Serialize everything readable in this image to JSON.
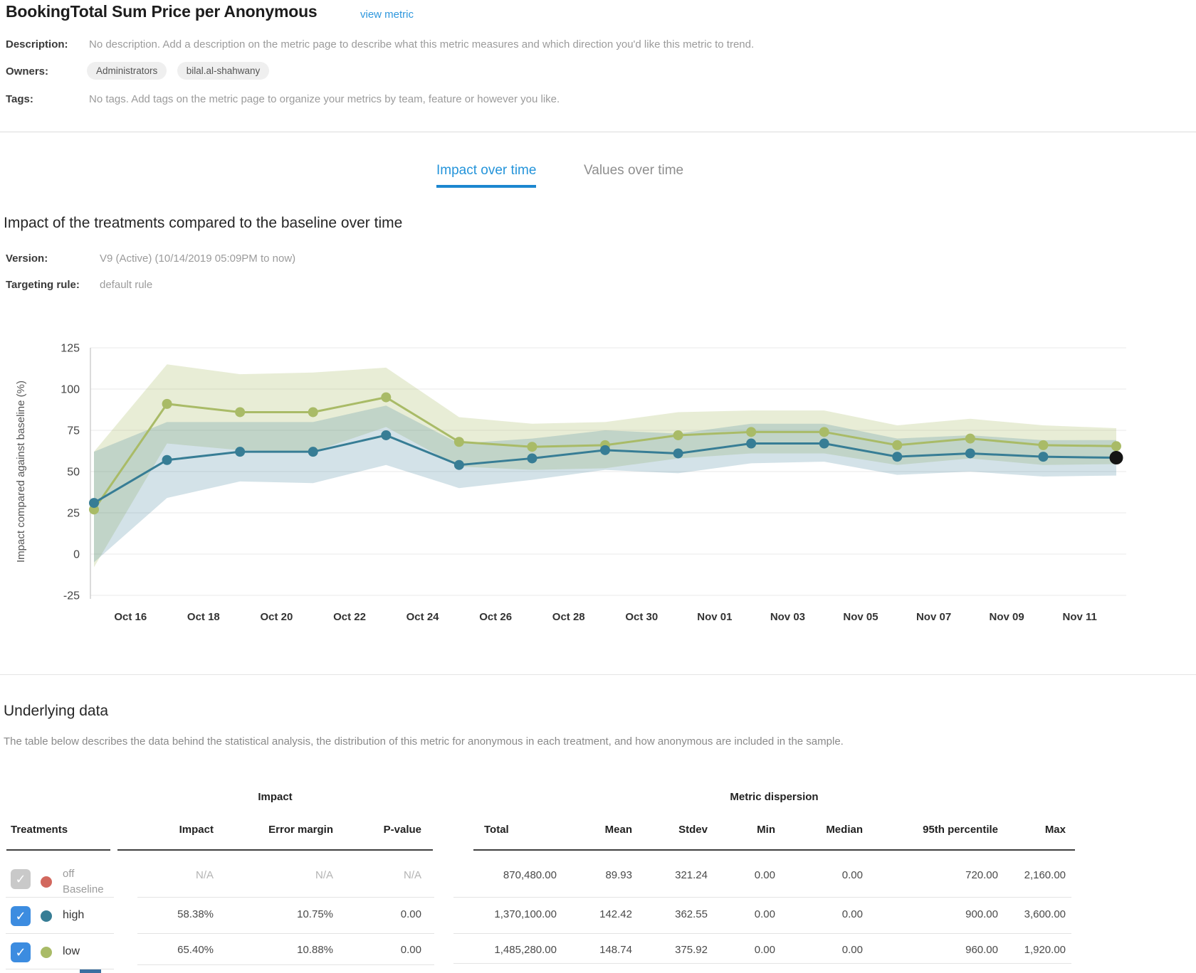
{
  "header": {
    "title": "BookingTotal Sum Price per Anonymous",
    "view_metric_label": "view metric",
    "meta": {
      "description_label": "Description:",
      "description_value": "No description. Add a description on the metric page to describe what this metric measures and which direction you'd like this metric to trend.",
      "owners_label": "Owners:",
      "owners": [
        "Administrators",
        "bilal.al-shahwany"
      ],
      "tags_label": "Tags:",
      "tags_value": "No tags. Add tags on the metric page to organize your metrics by team, feature or however you like."
    }
  },
  "tabs": [
    {
      "label": "Impact over time",
      "active": true
    },
    {
      "label": "Values over time",
      "active": false
    }
  ],
  "impact_section": {
    "heading": "Impact of the treatments compared to the baseline over time",
    "version_label": "Version:",
    "version_value": "V9 (Active) (10/14/2019 05:09PM to now)",
    "targeting_label": "Targeting rule:",
    "targeting_value": "default rule"
  },
  "chart_data": {
    "type": "line",
    "title": "",
    "ylabel": "Impact compared against baseline (%)",
    "ylim": [
      -25,
      125
    ],
    "yticks": [
      125,
      100,
      75,
      50,
      25,
      0,
      -25
    ],
    "xticklabels": [
      "Oct 16",
      "Oct 18",
      "Oct 20",
      "Oct 22",
      "Oct 24",
      "Oct 26",
      "Oct 28",
      "Oct 30",
      "Nov 01",
      "Nov 03",
      "Nov 05",
      "Nov 07",
      "Nov 09",
      "Nov 11"
    ],
    "point_dates": [
      "Oct 15",
      "Oct 17",
      "Oct 19",
      "Oct 21",
      "Oct 23",
      "Oct 25",
      "Oct 27",
      "Oct 29",
      "Oct 31",
      "Nov 02",
      "Nov 04",
      "Nov 06",
      "Nov 08",
      "Nov 10",
      "Nov 12"
    ],
    "grid": "horizontal",
    "legend": "none (see table checkboxes)",
    "series": [
      {
        "name": "low",
        "color": "#a9bb67",
        "band_color": "rgba(169,187,103,0.27)",
        "values": [
          27,
          91,
          86,
          86,
          95,
          68,
          65,
          66,
          72,
          74,
          74,
          66,
          70,
          66,
          65.4
        ],
        "lower": [
          -8,
          67,
          63,
          62,
          77,
          53,
          51,
          52,
          58,
          61,
          61,
          54,
          58,
          54,
          54.5
        ],
        "upper": [
          62,
          115,
          109,
          110,
          113,
          83,
          79,
          80,
          86,
          87,
          87,
          78,
          82,
          78,
          76.3
        ]
      },
      {
        "name": "high",
        "color": "#377d95",
        "band_color": "rgba(55,125,149,0.22)",
        "values": [
          31,
          57,
          62,
          62,
          72,
          54,
          58,
          63,
          61,
          67,
          67,
          59,
          61,
          59,
          58.38
        ],
        "lower": [
          -5,
          34,
          44,
          43,
          54,
          40,
          45,
          51,
          49,
          55,
          56,
          48,
          50,
          47,
          47.6
        ],
        "upper": [
          62,
          80,
          80,
          80,
          90,
          67,
          70,
          75,
          73,
          79,
          79,
          70,
          72,
          69,
          69.1
        ]
      }
    ],
    "latest_marker": {
      "series": "high",
      "index": 14,
      "color": "#141414"
    }
  },
  "underlying": {
    "heading": "Underlying data",
    "description": "The table below describes the data behind the statistical analysis, the distribution of this metric for anonymous in each treatment, and how anonymous are included in the sample.",
    "table": {
      "treatments_label": "Treatments",
      "groups": [
        {
          "label": "Impact"
        },
        {
          "label": "Metric dispersion"
        }
      ],
      "columns": [
        "Impact",
        "Error margin",
        "P-value",
        "Total",
        "Mean",
        "Stdev",
        "Min",
        "Median",
        "95th percentile",
        "Max"
      ],
      "rows": [
        {
          "name": "off",
          "sub": "Baseline",
          "dot_color": "#d2685e",
          "checkbox": "gray",
          "checked": true,
          "muted": true,
          "impact": "N/A",
          "error_margin": "N/A",
          "p_value": "N/A",
          "total": "870,480.00",
          "mean": "89.93",
          "stdev": "321.24",
          "min": "0.00",
          "median": "0.00",
          "p95": "720.00",
          "max": "2,160.00"
        },
        {
          "name": "high",
          "sub": "",
          "dot_color": "#377d95",
          "checkbox": "blue",
          "checked": true,
          "muted": false,
          "impact": "58.38%",
          "error_margin": "10.75%",
          "p_value": "0.00",
          "total": "1,370,100.00",
          "mean": "142.42",
          "stdev": "362.55",
          "min": "0.00",
          "median": "0.00",
          "p95": "900.00",
          "max": "3,600.00"
        },
        {
          "name": "low",
          "sub": "",
          "dot_color": "#a9bb67",
          "checkbox": "blue",
          "checked": true,
          "muted": false,
          "impact": "65.40%",
          "error_margin": "10.88%",
          "p_value": "0.00",
          "total": "1,485,280.00",
          "mean": "148.74",
          "stdev": "375.92",
          "min": "0.00",
          "median": "0.00",
          "p95": "960.00",
          "max": "1,920.00"
        }
      ]
    }
  },
  "colors": {
    "accent_blue": "#2494da",
    "link_blue": "#2e97dd",
    "checkbox_blue": "#3c8ce0",
    "grid_line": "#e8e8e8",
    "axis_line": "#cfcfcf"
  }
}
